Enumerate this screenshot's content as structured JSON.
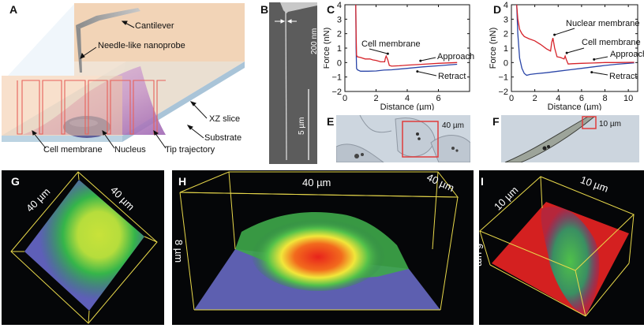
{
  "figure": {
    "panels": {
      "A": {
        "label": "A",
        "annotations": {
          "cantilever": "Cantilever",
          "nanoprobe": "Needle-like nanoprobe",
          "xz_slice": "XZ slice",
          "substrate": "Substrate",
          "cell_membrane": "Cell membrane",
          "nucleus": "Nucleus",
          "tip_trajectory": "Tip trajectory"
        }
      },
      "B": {
        "label": "B",
        "scale_width": "200 nm",
        "scale_bar": "5 µm"
      },
      "E": {
        "label": "E",
        "box_label": "40 µm"
      },
      "F": {
        "label": "F",
        "box_label": "10 µm"
      },
      "G": {
        "label": "G",
        "dim1": "40 µm",
        "dim2": "40 µm"
      },
      "H": {
        "label": "H",
        "dim_x": "40 µm",
        "dim_y": "40 µm",
        "dim_z": "8 µm"
      },
      "I": {
        "label": "I",
        "dim1": "10 µm",
        "dim2": "10 µm",
        "dim_z": "6 µm"
      }
    },
    "colors": {
      "approach": "#d6232a",
      "retract": "#2b46a8",
      "highlight_box": "#e03c3c",
      "frame": "#e8d84a"
    }
  },
  "chart_data": [
    {
      "panel": "C",
      "label": "C",
      "type": "line",
      "title": "",
      "xlabel": "Distance (µm)",
      "ylabel": "Force (nN)",
      "xlim": [
        0,
        8
      ],
      "ylim": [
        -2,
        4
      ],
      "xticks": [
        0,
        2,
        4,
        6
      ],
      "yticks": [
        4,
        3,
        2,
        1,
        0,
        -1,
        -2
      ],
      "xtick_labels": [
        "0",
        "2",
        "4",
        "6"
      ],
      "ytick_labels": [
        "4",
        "3",
        "2",
        "1",
        "0",
        "−1",
        "−2"
      ],
      "series": [
        {
          "name": "Approach",
          "color": "#d6232a",
          "x": [
            0.7,
            0.72,
            0.75,
            0.8,
            1.0,
            1.3,
            1.6,
            1.8,
            2.0,
            2.3,
            2.55,
            2.6,
            2.65,
            2.75,
            2.85,
            3.0,
            3.5,
            4.0,
            5.0,
            6.0,
            7.2
          ],
          "y": [
            4.2,
            2.0,
            0.5,
            0.4,
            0.35,
            0.25,
            0.25,
            0.18,
            0.15,
            0.05,
            0.05,
            0.3,
            0.45,
            0.2,
            -0.2,
            -0.25,
            -0.22,
            -0.18,
            -0.12,
            -0.05,
            0.0
          ]
        },
        {
          "name": "Retract",
          "color": "#2b46a8",
          "x": [
            0.7,
            0.72,
            0.75,
            0.8,
            1.0,
            1.5,
            2.0,
            2.5,
            3.0,
            4.0,
            5.0,
            6.0,
            7.2
          ],
          "y": [
            4.2,
            1.0,
            -0.4,
            -0.5,
            -0.6,
            -0.6,
            -0.58,
            -0.52,
            -0.5,
            -0.4,
            -0.3,
            -0.22,
            -0.12
          ]
        }
      ],
      "annotations": [
        {
          "text": "Cell membrane",
          "x": 2.65,
          "y": 0.45
        },
        {
          "text": "Approach",
          "x": 4.8,
          "y": -0.1
        },
        {
          "text": "Retract",
          "x": 4.6,
          "y": -0.4
        }
      ]
    },
    {
      "panel": "D",
      "label": "D",
      "type": "line",
      "title": "",
      "xlabel": "Distance (µm)",
      "ylabel": "Force (nN)",
      "xlim": [
        0,
        10.8
      ],
      "ylim": [
        -2,
        4
      ],
      "xticks": [
        0,
        2,
        4,
        6,
        8,
        10
      ],
      "yticks": [
        4,
        3,
        2,
        1,
        0,
        -1,
        -2
      ],
      "xtick_labels": [
        "0",
        "2",
        "4",
        "6",
        "8",
        "10"
      ],
      "ytick_labels": [
        "4",
        "3",
        "2",
        "1",
        "0",
        "−1",
        "−2"
      ],
      "series": [
        {
          "name": "Approach",
          "color": "#d6232a",
          "x": [
            0.45,
            0.55,
            0.7,
            0.9,
            1.1,
            1.5,
            2.0,
            2.5,
            3.0,
            3.35,
            3.45,
            3.55,
            3.7,
            3.9,
            4.2,
            4.5,
            4.6,
            4.7,
            4.85,
            5.2,
            6.0,
            7.0,
            8.0,
            9.0,
            10.5
          ],
          "y": [
            4.0,
            3.0,
            2.3,
            2.0,
            1.8,
            1.65,
            1.5,
            1.25,
            0.95,
            0.8,
            1.4,
            1.7,
            1.0,
            0.4,
            0.35,
            0.25,
            0.45,
            0.2,
            -0.1,
            -0.08,
            -0.05,
            -0.03,
            0.0,
            0.0,
            0.02
          ]
        },
        {
          "name": "Retract",
          "color": "#2b46a8",
          "x": [
            0.45,
            0.55,
            0.7,
            0.9,
            1.1,
            1.3,
            1.6,
            2.0,
            3.0,
            4.0,
            5.0,
            6.0,
            7.0,
            8.0,
            9.0,
            10.5
          ],
          "y": [
            4.0,
            2.0,
            0.3,
            -0.4,
            -0.75,
            -0.88,
            -0.82,
            -0.78,
            -0.7,
            -0.6,
            -0.5,
            -0.4,
            -0.3,
            -0.2,
            -0.12,
            -0.02
          ]
        }
      ],
      "annotations": [
        {
          "text": "Nuclear membrane",
          "x": 3.55,
          "y": 1.7
        },
        {
          "text": "Cell membrane",
          "x": 4.6,
          "y": 0.45
        },
        {
          "text": "Approach",
          "x": 7.0,
          "y": 0.0
        },
        {
          "text": "Retract",
          "x": 6.8,
          "y": -0.45
        }
      ]
    }
  ]
}
